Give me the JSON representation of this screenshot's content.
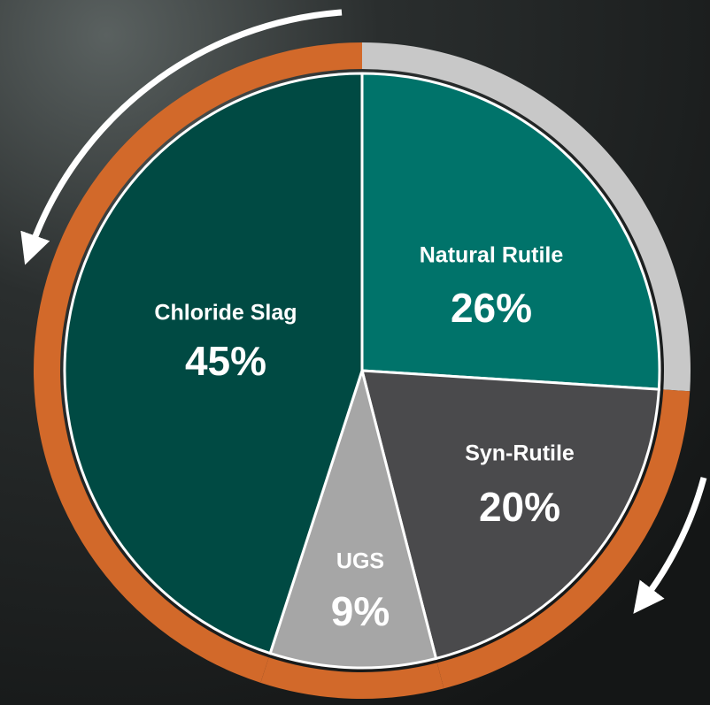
{
  "chart_data": {
    "type": "pie",
    "categories": [
      "Natural Rutile",
      "Syn-Rutile",
      "UGS",
      "Chloride Slag"
    ],
    "values": [
      26,
      20,
      9,
      45
    ],
    "value_labels": [
      "26%",
      "20%",
      "9%",
      "45%"
    ],
    "colors": [
      "#00736a",
      "#4a4a4c",
      "#a6a6a6",
      "#004a43"
    ],
    "ring_colors": [
      "#c8c8c8",
      "#d2692a",
      "#d2692a",
      "#d2692a"
    ]
  }
}
